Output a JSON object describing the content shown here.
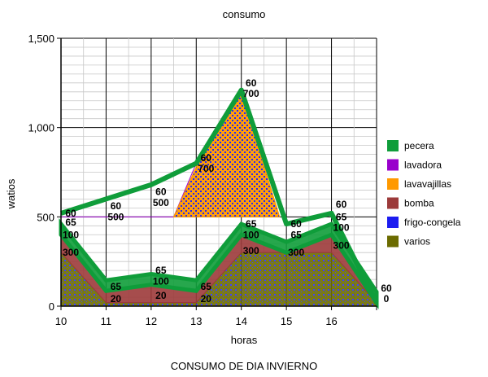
{
  "chart_data": {
    "type": "area",
    "title": "consumo",
    "xlabel": "horas",
    "ylabel": "watios",
    "caption": "CONSUMO DE DIA  INVIERNO",
    "x": [
      10,
      11,
      12,
      13,
      14,
      15,
      16,
      17
    ],
    "x_tick_labels": [
      "10",
      "11",
      "12",
      "13",
      "14",
      "15",
      "16",
      ""
    ],
    "ylim": [
      0,
      1500
    ],
    "y_ticks": [
      0,
      500,
      1000,
      1500
    ],
    "y_tick_labels": [
      "0",
      "500",
      "1,000",
      "1,500"
    ],
    "grid": true,
    "legend_position": "right",
    "series": [
      {
        "name": "varios",
        "color": "#6b6b00",
        "values": [
          300,
          20,
          20,
          20,
          300,
          300,
          300,
          20
        ]
      },
      {
        "name": "frigo-congela",
        "color": "#1c1cf0",
        "values": [
          0,
          0,
          0,
          0,
          0,
          0,
          0,
          0
        ]
      },
      {
        "name": "bomba",
        "color": "#9c3a3a",
        "values": [
          100,
          65,
          100,
          65,
          100,
          0,
          100,
          0
        ]
      },
      {
        "name": "lavavajillas",
        "color": "#ff9900",
        "values": [
          0,
          0,
          0,
          0,
          0,
          0,
          0,
          0
        ]
      },
      {
        "name": "lavadora",
        "color": "#9900cc",
        "values": [
          0,
          0,
          0,
          0,
          0,
          0,
          0,
          0
        ]
      },
      {
        "name": "pecera",
        "color": "#0f9d3a",
        "values": [
          60,
          60,
          60,
          60,
          60,
          60,
          60,
          60
        ]
      }
    ],
    "data_labels": [
      {
        "x": 10,
        "y": 520,
        "text": "60"
      },
      {
        "x": 10,
        "y": 470,
        "text": "65"
      },
      {
        "x": 10,
        "y": 400,
        "text": "100"
      },
      {
        "x": 10,
        "y": 300,
        "text": "300"
      },
      {
        "x": 11,
        "y": 560,
        "text": "60"
      },
      {
        "x": 11,
        "y": 500,
        "text": "500"
      },
      {
        "x": 11,
        "y": 110,
        "text": "65"
      },
      {
        "x": 11,
        "y": 40,
        "text": "20"
      },
      {
        "x": 12,
        "y": 640,
        "text": "60"
      },
      {
        "x": 12,
        "y": 580,
        "text": "500"
      },
      {
        "x": 12,
        "y": 200,
        "text": "65"
      },
      {
        "x": 12,
        "y": 140,
        "text": "100"
      },
      {
        "x": 12,
        "y": 60,
        "text": "20"
      },
      {
        "x": 13,
        "y": 830,
        "text": "60"
      },
      {
        "x": 13,
        "y": 770,
        "text": "700"
      },
      {
        "x": 13,
        "y": 110,
        "text": "65"
      },
      {
        "x": 13,
        "y": 40,
        "text": "20"
      },
      {
        "x": 14,
        "y": 1250,
        "text": "60"
      },
      {
        "x": 14,
        "y": 1190,
        "text": "700"
      },
      {
        "x": 14,
        "y": 460,
        "text": "65"
      },
      {
        "x": 14,
        "y": 400,
        "text": "100"
      },
      {
        "x": 14,
        "y": 310,
        "text": "300"
      },
      {
        "x": 15,
        "y": 460,
        "text": "60"
      },
      {
        "x": 15,
        "y": 400,
        "text": "65"
      },
      {
        "x": 15,
        "y": 300,
        "text": "300"
      },
      {
        "x": 16,
        "y": 570,
        "text": "60"
      },
      {
        "x": 16,
        "y": 500,
        "text": "65"
      },
      {
        "x": 16,
        "y": 440,
        "text": "100"
      },
      {
        "x": 16,
        "y": 340,
        "text": "300"
      },
      {
        "x": 17,
        "y": 100,
        "text": "60"
      },
      {
        "x": 17,
        "y": 40,
        "text": "0"
      }
    ],
    "overlays": [
      {
        "name": "lavadora",
        "color": "#9900cc",
        "points": [
          [
            10,
            500
          ],
          [
            11,
            500
          ],
          [
            12,
            500
          ],
          [
            12.5,
            500
          ],
          [
            13,
            800
          ],
          [
            12.5,
            500
          ]
        ]
      },
      {
        "name": "lavavajillas",
        "color": "#ff9900",
        "points": [
          [
            12.5,
            500
          ],
          [
            13,
            780
          ],
          [
            14,
            1200
          ],
          [
            14.85,
            500
          ]
        ]
      }
    ]
  },
  "legend": {
    "items": [
      {
        "label": "pecera",
        "color": "#0f9d3a"
      },
      {
        "label": "lavadora",
        "color": "#9900cc"
      },
      {
        "label": "lavavajillas",
        "color": "#ff9900"
      },
      {
        "label": "bomba",
        "color": "#9c3a3a"
      },
      {
        "label": "frigo-congela",
        "color": "#1c1cf0"
      },
      {
        "label": "varios",
        "color": "#6b6b00"
      }
    ]
  }
}
